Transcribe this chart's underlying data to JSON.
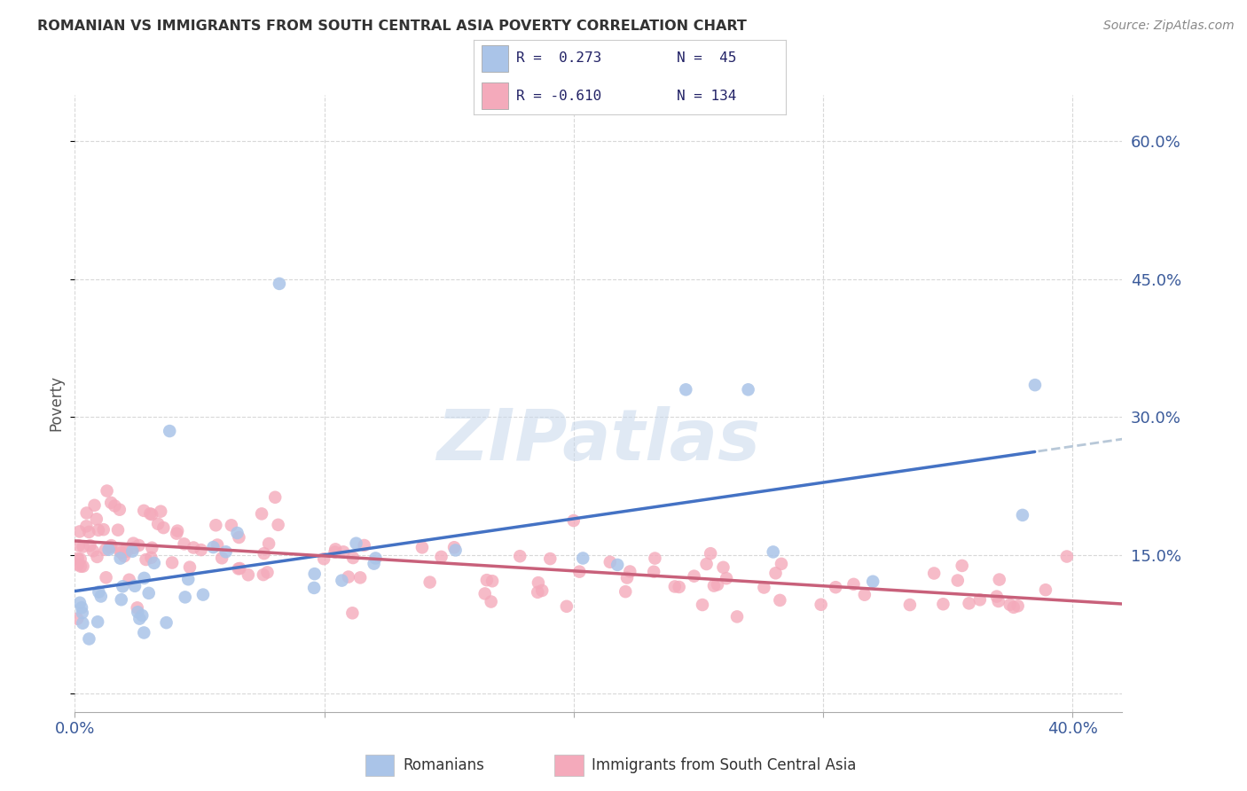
{
  "title": "ROMANIAN VS IMMIGRANTS FROM SOUTH CENTRAL ASIA POVERTY CORRELATION CHART",
  "source": "Source: ZipAtlas.com",
  "ylabel": "Poverty",
  "xlim": [
    0.0,
    0.42
  ],
  "ylim": [
    -0.02,
    0.65
  ],
  "bg_color": "#ffffff",
  "color_blue": "#aac4e8",
  "color_pink": "#f4aabb",
  "line_blue": "#4472c4",
  "line_pink": "#c8607a",
  "line_ext_color": "#b8c8d8",
  "legend_text1": "R =  0.273   N =  45",
  "legend_text2": "R = -0.610   N = 134",
  "ytick_vals": [
    0.0,
    0.15,
    0.3,
    0.45,
    0.6
  ],
  "ytick_labels": [
    "",
    "15.0%",
    "30.0%",
    "45.0%",
    "60.0%"
  ],
  "xtick_vals": [
    0.0,
    0.1,
    0.2,
    0.3,
    0.4
  ],
  "xtick_labels": [
    "0.0%",
    "",
    "",
    "",
    "40.0%"
  ],
  "grid_color": "#d8d8d8",
  "watermark": "ZIPatlas"
}
